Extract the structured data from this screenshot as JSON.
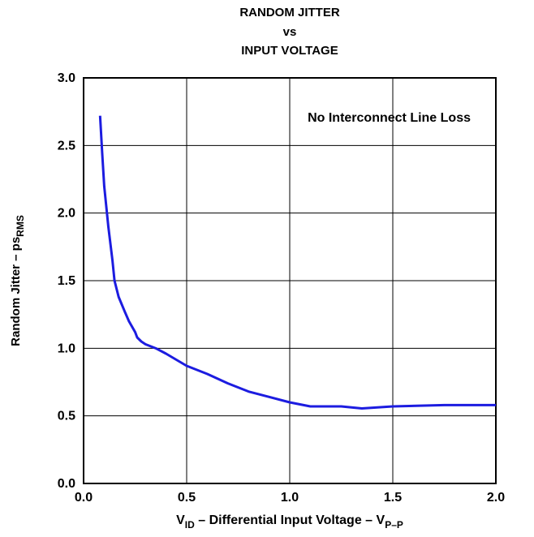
{
  "chart_data": {
    "type": "line",
    "title": [
      "RANDOM JITTER",
      "vs",
      "INPUT VOLTAGE"
    ],
    "xlabel": [
      "V",
      "ID",
      " – Differential Input Voltage – V",
      "P–P"
    ],
    "ylabel": [
      "Random Jitter – ps",
      "RMS"
    ],
    "annotation": "No Interconnect Line Loss",
    "x": [
      0.08,
      0.09,
      0.1,
      0.12,
      0.14,
      0.15,
      0.17,
      0.2,
      0.22,
      0.25,
      0.26,
      0.28,
      0.3,
      0.35,
      0.4,
      0.5,
      0.6,
      0.7,
      0.8,
      0.9,
      1.0,
      1.1,
      1.25,
      1.35,
      1.5,
      1.75,
      2.0
    ],
    "series": [
      {
        "name": "Random Jitter",
        "color": "#1c1ce0",
        "values": [
          2.72,
          2.45,
          2.2,
          1.9,
          1.65,
          1.5,
          1.38,
          1.27,
          1.2,
          1.12,
          1.08,
          1.05,
          1.03,
          1.0,
          0.96,
          0.87,
          0.81,
          0.74,
          0.68,
          0.64,
          0.6,
          0.57,
          0.57,
          0.555,
          0.57,
          0.58,
          0.58
        ]
      }
    ],
    "xlim": [
      0,
      2
    ],
    "xticks": [
      {
        "value": 0,
        "label": "0.0"
      },
      0.5,
      {
        "value": 1,
        "label": "1.0"
      },
      1.5,
      {
        "value": 2,
        "label": "2.0"
      }
    ],
    "ylim": [
      0,
      3
    ],
    "yticks": [
      {
        "value": 0,
        "label": "0.0"
      },
      0.5,
      {
        "value": 1,
        "label": "1.0"
      },
      1.5,
      {
        "value": 2,
        "label": "2.0"
      },
      2.5,
      {
        "value": 3,
        "label": "3.0"
      }
    ],
    "grid": true
  }
}
